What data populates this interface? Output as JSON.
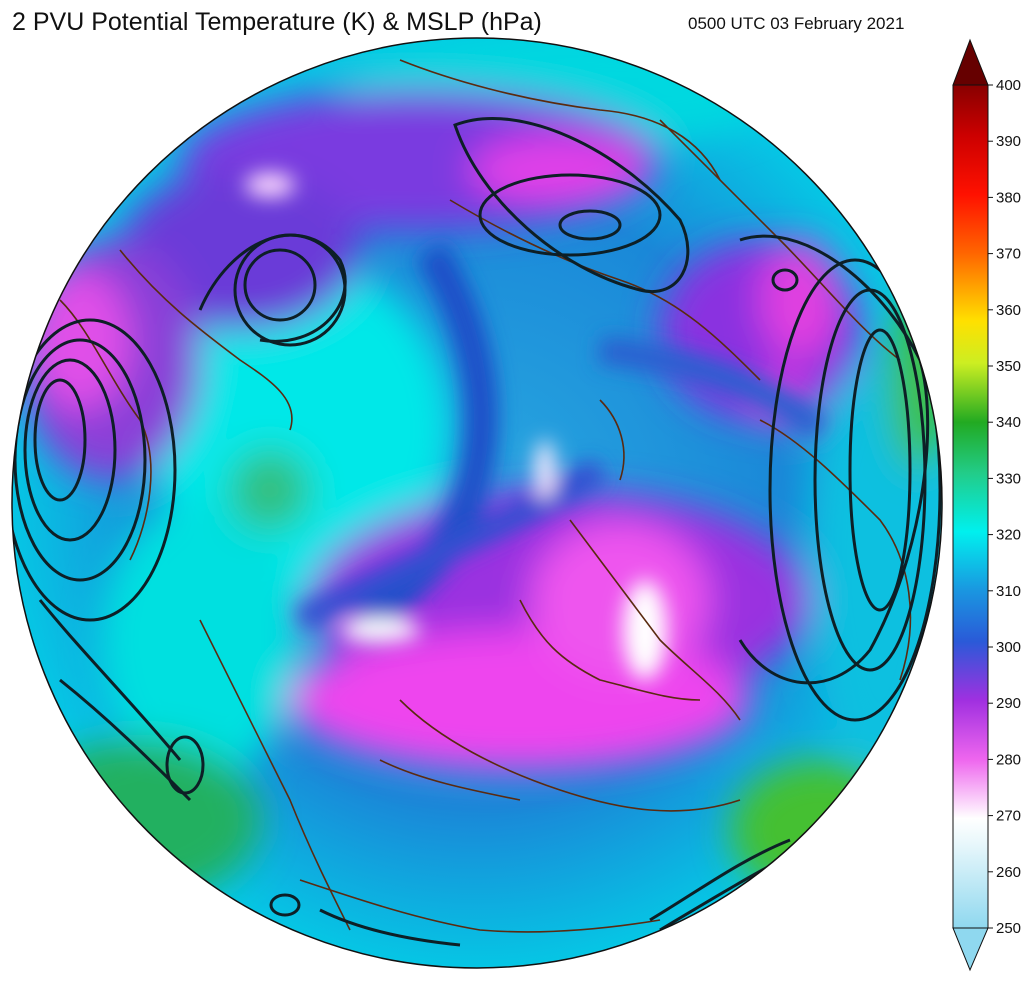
{
  "header": {
    "title": "2 PVU Potential Temperature (K) & MSLP (hPa)",
    "timestamp": "0500 UTC 03 February 2021"
  },
  "colorbar": {
    "ticks": [
      "250",
      "260",
      "270",
      "280",
      "290",
      "300",
      "310",
      "320",
      "330",
      "340",
      "350",
      "360",
      "370",
      "380",
      "390",
      "400"
    ],
    "range": [
      250,
      400
    ],
    "extend": "both",
    "colors": {
      "c250": "#8fd8ef",
      "c265": "#e8f7fb",
      "c270": "#ffffff",
      "c280": "#ee66ee",
      "c290": "#7a2ad8",
      "c300": "#2a5ad8",
      "c310": "#1a96e0",
      "c320": "#00f0ee",
      "c330": "#22cc88",
      "c340": "#22aa22",
      "c350": "#ccee22",
      "c360": "#ffcc00",
      "c370": "#ff6600",
      "c380": "#ff1100",
      "c390": "#cc0000",
      "c400": "#660000"
    }
  },
  "map": {
    "projection": "north-polar-orthographic",
    "contour_color": "#0d1f26",
    "coastline_color": "#5a2a10"
  }
}
